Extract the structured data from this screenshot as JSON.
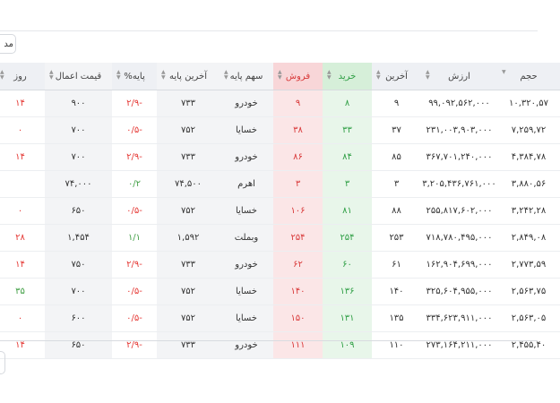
{
  "toolbar": {
    "button": "مد"
  },
  "table": {
    "columns": [
      "حجم",
      "ارزش",
      "آخرین",
      "خرید",
      "فروش",
      "سهم پایه",
      "آخرین پایه",
      "پایه%",
      "قیمت اعمال",
      "روز"
    ],
    "rows": [
      [
        "۱۰,۳۲۰,۵۷",
        "۹۹,۰۹۲,۵۶۲,۰۰۰",
        "۹",
        "۸",
        "۹",
        "خودرو",
        "۷۳۳",
        "-۲/۹",
        "۹۰۰",
        "۱۴"
      ],
      [
        "۷,۲۵۹,۷۲",
        "۲۳۱,۰۰۳,۹۰۳,۰۰۰",
        "۳۷",
        "۳۳",
        "۳۸",
        "خسایا",
        "۷۵۲",
        "-۰/۵",
        "۷۰۰",
        "۰"
      ],
      [
        "۴,۳۸۴,۷۸",
        "۳۶۷,۷۰۱,۲۴۰,۰۰۰",
        "۸۵",
        "۸۴",
        "۸۶",
        "خودرو",
        "۷۳۳",
        "-۲/۹",
        "۷۰۰",
        "۱۴"
      ],
      [
        "۳,۸۸۰,۵۶",
        "۳,۲۰۵,۴۳۶,۷۶۱,۰۰۰",
        "۳",
        "۳",
        "۳",
        "اهرم",
        "۷۴,۵۰۰",
        "۰/۲",
        "۷۴,۰۰۰",
        null
      ],
      [
        "۳,۲۴۲,۲۸",
        "۲۵۵,۸۱۷,۶۰۲,۰۰۰",
        "۸۸",
        "۸۱",
        "۱۰۶",
        "خسایا",
        "۷۵۲",
        "-۰/۵",
        "۶۵۰",
        "۰"
      ],
      [
        "۲,۸۴۹,۰۸",
        "۷۱۸,۷۸۰,۴۹۵,۰۰۰",
        "۲۵۳",
        "۲۵۴",
        "۲۵۴",
        "وبملت",
        "۱,۵۹۲",
        "۱/۱",
        "۱,۴۵۴",
        "۲۸"
      ],
      [
        "۲,۷۷۳,۵۹",
        "۱۶۲,۹۰۴,۶۹۹,۰۰۰",
        "۶۱",
        "۶۰",
        "۶۲",
        "خودرو",
        "۷۳۳",
        "-۲/۹",
        "۷۵۰",
        "۱۴"
      ],
      [
        "۲,۵۶۳,۷۵",
        "۳۲۵,۶۰۴,۹۵۵,۰۰۰",
        "۱۴۰",
        "۱۳۶",
        "۱۴۰",
        "خسایا",
        "۷۵۲",
        "-۰/۵",
        "۷۰۰",
        "۳۵"
      ],
      [
        "۲,۵۶۳,۰۵",
        "۳۳۴,۶۲۳,۹۱۱,۰۰۰",
        "۱۳۵",
        "۱۳۱",
        "۱۵۰",
        "خسایا",
        "۷۵۲",
        "-۰/۵",
        "۶۰۰",
        "۰"
      ],
      [
        "۲,۴۵۵,۴۰",
        "۲۷۳,۱۶۴,۲۱۱,۰۰۰",
        "۱۱۰",
        "۱۰۹",
        "۱۱۱",
        "خودرو",
        "۷۳۳",
        "-۲/۹",
        "۶۵۰",
        "۱۴"
      ]
    ],
    "day_colors": [
      "#e53935",
      "#e53935",
      "#e53935",
      "#e53935",
      "#e53935",
      "#e53935",
      "#e53935",
      "#43a047",
      "#e53935",
      "#e53935"
    ]
  }
}
